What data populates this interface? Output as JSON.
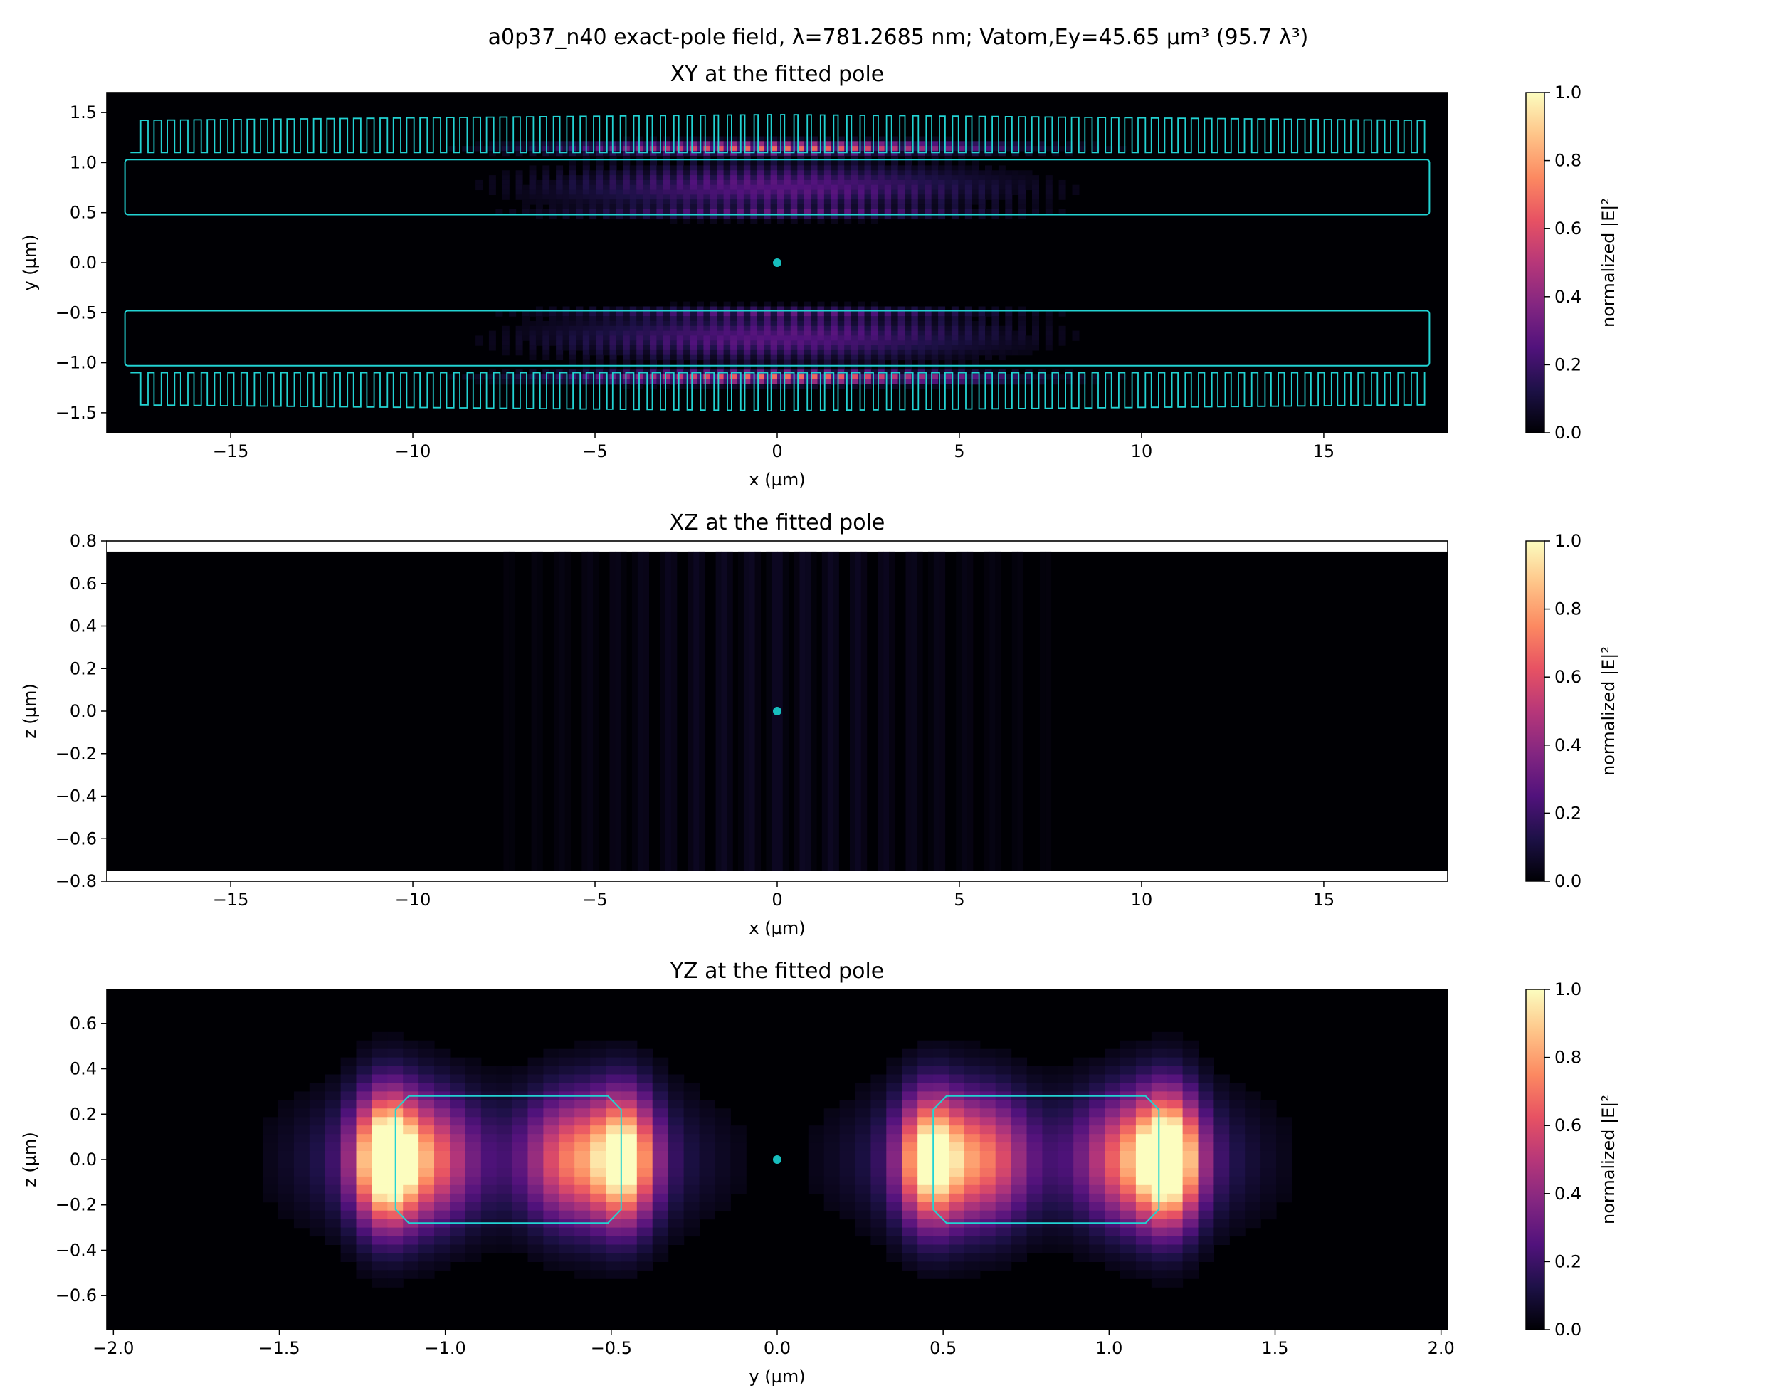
{
  "figure": {
    "suptitle": "a0p37_n40 exact-pole field, λ=781.2685 nm; Vatom,Ey=45.65 µm³ (95.7 λ³)"
  },
  "colors": {
    "outline": "#22d3d3",
    "marker": "#17bebe",
    "colormap": "magma",
    "colormap_stops": [
      "#000004",
      "#1d1147",
      "#51127c",
      "#832681",
      "#b73779",
      "#e75263",
      "#fc8961",
      "#fec488",
      "#fcfdbf"
    ]
  },
  "chart_data": [
    {
      "type": "heatmap",
      "title": "XY at the fitted pole",
      "xlabel": "x (µm)",
      "ylabel": "y (µm)",
      "xlim": [
        -18.4,
        18.4
      ],
      "ylim": [
        -1.7,
        1.7
      ],
      "xticks": [
        -15,
        -10,
        -5,
        0,
        5,
        10,
        15
      ],
      "xtick_labels": [
        "−15",
        "−10",
        "−5",
        "0",
        "5",
        "10",
        "15"
      ],
      "yticks": [
        1.5,
        1.0,
        0.5,
        0.0,
        -0.5,
        -1.0,
        -1.5
      ],
      "ytick_labels": [
        "1.5",
        "1.0",
        "0.5",
        "0.0",
        "−0.5",
        "−1.0",
        "−1.5"
      ],
      "colorbar": {
        "label": "normalized |E|²",
        "range": [
          0,
          1
        ],
        "ticks": [
          "1.0",
          "0.8",
          "0.6",
          "0.4",
          "0.2",
          "0.0"
        ]
      },
      "marker": {
        "x": 0,
        "y": 0
      },
      "field": {
        "envelope_halfwidth_um": 7.0,
        "lobe_center_y": [
          0.75,
          -0.75
        ],
        "peak_y": [
          1.15,
          -1.15
        ],
        "period_um": 0.37
      },
      "geometry": {
        "waveguide_x": [
          -17.9,
          17.9
        ],
        "waveguide_y_inner": 0.48,
        "waveguide_y_outer": 1.03,
        "teeth_count": 97,
        "tooth_tip_y": 1.42,
        "tooth_width_um": 0.2,
        "tooth_width_center_um": 0.1
      }
    },
    {
      "type": "heatmap",
      "title": "XZ at the fitted pole",
      "xlabel": "x (µm)",
      "ylabel": "z (µm)",
      "xlim": [
        -18.4,
        18.4
      ],
      "ylim": [
        -0.8,
        0.8
      ],
      "data_ylim": [
        -0.75,
        0.75
      ],
      "xticks": [
        -15,
        -10,
        -5,
        0,
        5,
        10,
        15
      ],
      "xtick_labels": [
        "−15",
        "−10",
        "−5",
        "0",
        "5",
        "10",
        "15"
      ],
      "yticks": [
        0.8,
        0.6,
        0.4,
        0.2,
        0.0,
        -0.2,
        -0.4,
        -0.6,
        -0.8
      ],
      "ytick_labels": [
        "0.8",
        "0.6",
        "0.4",
        "0.2",
        "0.0",
        "−0.2",
        "−0.4",
        "−0.6",
        "−0.8"
      ],
      "colorbar": {
        "label": "normalized |E|²",
        "range": [
          0,
          1
        ],
        "ticks": [
          "1.0",
          "0.8",
          "0.6",
          "0.4",
          "0.2",
          "0.0"
        ]
      },
      "marker": {
        "x": 0,
        "y": 0
      },
      "field": {
        "max_normalized": 0.06
      }
    },
    {
      "type": "heatmap",
      "title": "YZ at the fitted pole",
      "xlabel": "y (µm)",
      "ylabel": "z (µm)",
      "xlim": [
        -2.02,
        2.02
      ],
      "ylim": [
        -0.75,
        0.75
      ],
      "xticks": [
        -2.0,
        -1.5,
        -1.0,
        -0.5,
        0.0,
        0.5,
        1.0,
        1.5,
        2.0
      ],
      "xtick_labels": [
        "−2.0",
        "−1.5",
        "−1.0",
        "−0.5",
        "0.0",
        "0.5",
        "1.0",
        "1.5",
        "2.0"
      ],
      "yticks": [
        0.6,
        0.4,
        0.2,
        0.0,
        -0.2,
        -0.4,
        -0.6
      ],
      "ytick_labels": [
        "0.6",
        "0.4",
        "0.2",
        "0.0",
        "−0.2",
        "−0.4",
        "−0.6"
      ],
      "colorbar": {
        "label": "normalized |E|²",
        "range": [
          0,
          1
        ],
        "ticks": [
          "1.0",
          "0.8",
          "0.6",
          "0.4",
          "0.2",
          "0.0"
        ]
      },
      "marker": {
        "x": 0,
        "y": 0
      },
      "waveguides": [
        {
          "y_range": [
            -1.15,
            -0.47
          ],
          "z_range": [
            -0.28,
            0.28
          ],
          "chamfer": 0.04
        },
        {
          "y_range": [
            0.47,
            1.15
          ],
          "z_range": [
            -0.28,
            0.28
          ],
          "chamfer": 0.04
        }
      ],
      "field_peaks": [
        {
          "y": -1.18,
          "amp": 1.0
        },
        {
          "y": -1.05,
          "amp": 0.45
        },
        {
          "y": -0.62,
          "amp": 0.5
        },
        {
          "y": -0.46,
          "amp": 0.85
        },
        {
          "y": 0.46,
          "amp": 0.85
        },
        {
          "y": 0.62,
          "amp": 0.5
        },
        {
          "y": 1.05,
          "amp": 0.45
        },
        {
          "y": 1.18,
          "amp": 1.0
        }
      ]
    }
  ]
}
